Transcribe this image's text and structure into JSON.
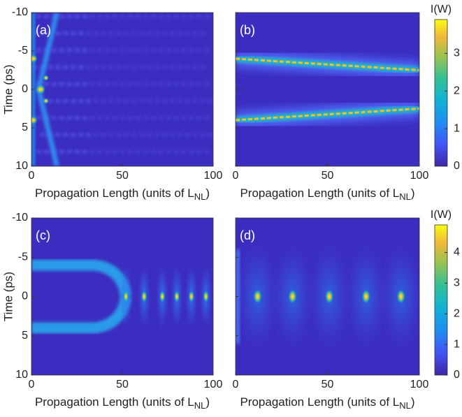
{
  "chart_data": [
    {
      "type": "heatmap",
      "panel_label": "(a)",
      "ylabel": "Time (ps)",
      "xlabel": {
        "text": "Propagation Length (units of L",
        "sub": "NL",
        "tail": ")"
      },
      "xlim": [
        0,
        100
      ],
      "xticks": [
        0,
        50,
        100
      ],
      "ylim": [
        -10,
        10
      ],
      "yticks": [
        -10,
        -5,
        0,
        5,
        10
      ],
      "y_reversed": true,
      "ytick_labels": true
    },
    {
      "type": "heatmap",
      "panel_label": "(b)",
      "xlabel": {
        "text": "Propagation Length (units of L",
        "sub": "NL",
        "tail": ")"
      },
      "xlim": [
        0,
        100
      ],
      "xticks": [
        0,
        50,
        100
      ],
      "ylim": [
        -10,
        10
      ],
      "yticks": [
        -10,
        -5,
        0,
        5,
        10
      ],
      "y_reversed": true,
      "ytick_labels": false,
      "colorbar": {
        "label": "I(W)",
        "lim": [
          0,
          3.9
        ],
        "ticks": [
          0,
          1,
          2,
          3
        ]
      }
    },
    {
      "type": "heatmap",
      "panel_label": "(c)",
      "ylabel": "Time (ps)",
      "xlabel": {
        "text": "Propagation Length (units of L",
        "sub": "NL",
        "tail": ")"
      },
      "xlim": [
        0,
        100
      ],
      "xticks": [
        0,
        50,
        100
      ],
      "ylim": [
        -10,
        10
      ],
      "yticks": [
        -10,
        -5,
        0,
        5,
        10
      ],
      "y_reversed": true,
      "ytick_labels": true
    },
    {
      "type": "heatmap",
      "panel_label": "(d)",
      "xlabel": {
        "text": "Propagation Length (units of L",
        "sub": "NL",
        "tail": ")"
      },
      "xlim": [
        0,
        100
      ],
      "xticks": [
        0,
        50,
        100
      ],
      "ylim": [
        -10,
        10
      ],
      "yticks": [
        -10,
        -5,
        0,
        5,
        10
      ],
      "y_reversed": true,
      "ytick_labels": false,
      "colorbar": {
        "label": "I(W)",
        "lim": [
          0,
          4.9
        ],
        "ticks": [
          0,
          1,
          2,
          3,
          4
        ]
      }
    }
  ]
}
